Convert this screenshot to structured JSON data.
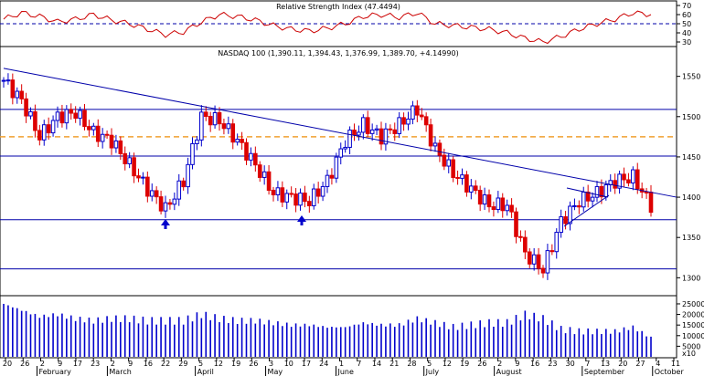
{
  "rsi_panel": {
    "title": "Relative Strength Index (47.4494)",
    "ticks": [
      "70",
      "60",
      "50",
      "40",
      "30"
    ],
    "tick_values": [
      70,
      60,
      50,
      40,
      30
    ],
    "ylim": [
      26,
      74
    ],
    "reference_levels": [
      50
    ],
    "line_color": "#cc0000",
    "reference_color": "#0000aa"
  },
  "price_panel": {
    "title": "NASDAQ 100 (1,390.11, 1,394.43, 1,376.99, 1,389.70, +4.14990)",
    "ticks": [
      "1550",
      "1500",
      "1450",
      "1400",
      "1350",
      "1300"
    ],
    "tick_values": [
      1550,
      1500,
      1450,
      1400,
      1350,
      1300
    ],
    "ylim": [
      1280,
      1570
    ],
    "up_color": "#0000cc",
    "down_color": "#dd0000",
    "horizontal_levels": [
      1509,
      1451,
      1372,
      1311
    ],
    "dashed_level": 1475,
    "dashed_color": "#f0a030",
    "trendline_color": "#0000aa"
  },
  "volume_panel": {
    "ticks": [
      "25000",
      "20000",
      "15000",
      "10000",
      "5000",
      "x10"
    ],
    "tick_values": [
      25000,
      20000,
      15000,
      10000,
      5000
    ],
    "ylim": [
      0,
      28000
    ],
    "bar_color": "#0000cc"
  },
  "x_axis": {
    "day_labels": [
      "20",
      "26",
      "2",
      "9",
      "17",
      "23",
      "2",
      "9",
      "16",
      "22",
      "29",
      "5",
      "12",
      "19",
      "26",
      "3",
      "10",
      "17",
      "24",
      "1",
      "7",
      "14",
      "21",
      "28",
      "5",
      "12",
      "19",
      "26",
      "2",
      "9",
      "16",
      "23",
      "30",
      "7",
      "13",
      "20",
      "27",
      "4",
      "11"
    ],
    "month_labels": [
      "February",
      "March",
      "April",
      "May",
      "June",
      "July",
      "August",
      "September",
      "October"
    ]
  },
  "chart_data": [
    {
      "type": "line",
      "title": "Relative Strength Index (47.4494)",
      "ylim": [
        26,
        74
      ],
      "reference": 50,
      "x": [
        "Jan-20",
        "Jan-26",
        "Feb-02",
        "Feb-09",
        "Feb-17",
        "Feb-23",
        "Mar-02",
        "Mar-09",
        "Mar-16",
        "Mar-22",
        "Mar-29",
        "Apr-05",
        "Apr-12",
        "Apr-19",
        "Apr-26",
        "May-03",
        "May-10",
        "May-17",
        "May-24",
        "Jun-01",
        "Jun-07",
        "Jun-14",
        "Jun-21",
        "Jun-28",
        "Jul-05",
        "Jul-12",
        "Jul-19",
        "Jul-26",
        "Aug-02",
        "Aug-09",
        "Aug-16",
        "Aug-23",
        "Aug-30",
        "Sep-07",
        "Sep-13",
        "Sep-20",
        "Sep-27"
      ],
      "series": [
        {
          "values": [
            55,
            62,
            58,
            52,
            55,
            60,
            54,
            50,
            44,
            38,
            41,
            52,
            60,
            58,
            54,
            48,
            44,
            42,
            45,
            50,
            58,
            60,
            57,
            62,
            50,
            48,
            46,
            44,
            40,
            34,
            30,
            36,
            44,
            50,
            55,
            62,
            60
          ]
        }
      ]
    },
    {
      "type": "candlestick",
      "title": "NASDAQ 100 (1,390.11, 1,394.43, 1,376.99, 1,389.70, +4.14990)",
      "ylim": [
        1280,
        1570
      ],
      "x": [
        "Jan-20",
        "Jan-26",
        "Feb-02",
        "Feb-09",
        "Feb-17",
        "Feb-23",
        "Mar-02",
        "Mar-09",
        "Mar-16",
        "Mar-22",
        "Mar-29",
        "Apr-05",
        "Apr-12",
        "Apr-19",
        "Apr-26",
        "May-03",
        "May-10",
        "May-17",
        "May-24",
        "Jun-01",
        "Jun-07",
        "Jun-14",
        "Jun-21",
        "Jun-28",
        "Jul-05",
        "Jul-12",
        "Jul-19",
        "Jul-26",
        "Aug-02",
        "Aug-09",
        "Aug-16",
        "Aug-23",
        "Aug-30",
        "Sep-07",
        "Sep-13",
        "Sep-20",
        "Sep-27"
      ],
      "series": [
        {
          "values": [
            1545,
            1520,
            1475,
            1500,
            1505,
            1480,
            1470,
            1440,
            1410,
            1385,
            1420,
            1500,
            1495,
            1470,
            1440,
            1405,
            1400,
            1395,
            1420,
            1470,
            1490,
            1475,
            1490,
            1510,
            1460,
            1430,
            1410,
            1390,
            1390,
            1330,
            1310,
            1370,
            1395,
            1405,
            1420,
            1425,
            1390
          ]
        }
      ],
      "horizontal_levels": [
        1509,
        1451,
        1372,
        1311
      ],
      "dashed_level": 1475,
      "trendline": [
        [
          "Jan-20",
          1560
        ],
        [
          "Oct-01",
          1400
        ]
      ]
    },
    {
      "type": "bar",
      "title": "",
      "ylim": [
        0,
        28000
      ],
      "x": [
        "Jan-20",
        "Jan-26",
        "Feb-02",
        "Feb-09",
        "Feb-17",
        "Feb-23",
        "Mar-02",
        "Mar-09",
        "Mar-16",
        "Mar-22",
        "Mar-29",
        "Apr-05",
        "Apr-12",
        "Apr-19",
        "Apr-26",
        "May-03",
        "May-10",
        "May-17",
        "May-24",
        "Jun-01",
        "Jun-07",
        "Jun-14",
        "Jun-21",
        "Jun-28",
        "Jul-05",
        "Jul-12",
        "Jul-19",
        "Jul-26",
        "Aug-02",
        "Aug-09",
        "Aug-16",
        "Aug-23",
        "Aug-30",
        "Sep-07",
        "Sep-13",
        "Sep-20",
        "Sep-27"
      ],
      "series": [
        {
          "values": [
            25000,
            22000,
            19000,
            20000,
            18000,
            17000,
            18000,
            18000,
            17000,
            17000,
            17000,
            20000,
            18000,
            17000,
            17000,
            16000,
            15000,
            15000,
            14000,
            14000,
            16000,
            15000,
            15000,
            18000,
            16000,
            14000,
            15000,
            16000,
            16000,
            20000,
            18000,
            13000,
            12000,
            12000,
            12000,
            14000,
            9000
          ]
        }
      ]
    }
  ]
}
